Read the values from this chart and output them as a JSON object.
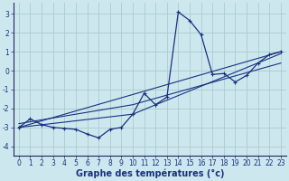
{
  "xlabel": "Graphe des températures (°c)",
  "background_color": "#cce8ee",
  "grid_color": "#aacccc",
  "line_color": "#1a3080",
  "xlim": [
    -0.5,
    23.5
  ],
  "ylim": [
    -4.5,
    3.6
  ],
  "x_ticks": [
    0,
    1,
    2,
    3,
    4,
    5,
    6,
    7,
    8,
    9,
    10,
    11,
    12,
    13,
    14,
    15,
    16,
    17,
    18,
    19,
    20,
    21,
    22,
    23
  ],
  "yticks": [
    -4,
    -3,
    -2,
    -1,
    0,
    1,
    2,
    3
  ],
  "main_x": [
    0,
    1,
    2,
    3,
    4,
    5,
    6,
    7,
    8,
    9,
    10,
    11,
    12,
    13,
    14,
    15,
    16,
    17,
    18,
    19,
    20,
    21,
    22,
    23
  ],
  "main_y": [
    -3.0,
    -2.55,
    -2.85,
    -3.0,
    -3.05,
    -3.1,
    -3.35,
    -3.55,
    -3.1,
    -3.0,
    -2.3,
    -1.2,
    -1.8,
    -1.4,
    3.1,
    2.65,
    1.9,
    -0.2,
    -0.15,
    -0.6,
    -0.25,
    0.4,
    0.85,
    1.0
  ],
  "line2_x": [
    0,
    23
  ],
  "line2_y": [
    -3.0,
    1.0
  ],
  "line3_x": [
    0,
    10,
    23
  ],
  "line3_y": [
    -3.0,
    -2.3,
    0.9
  ],
  "line4_x": [
    0,
    10,
    23
  ],
  "line4_y": [
    -2.8,
    -1.8,
    0.4
  ],
  "tick_fontsize": 5.5,
  "label_fontsize": 7
}
